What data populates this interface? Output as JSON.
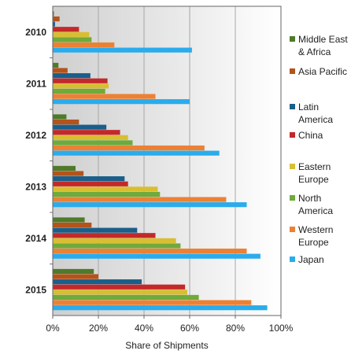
{
  "chart_data": {
    "type": "bar",
    "orientation": "horizontal",
    "xlabel": "Share of Shipments",
    "ylabel": "",
    "xlim": [
      0,
      100
    ],
    "x_ticks": [
      "0%",
      "20%",
      "40%",
      "60%",
      "80%",
      "100%"
    ],
    "x_tick_values": [
      0,
      20,
      40,
      60,
      80,
      100
    ],
    "categories": [
      "2010",
      "2011",
      "2012",
      "2013",
      "2014",
      "2015"
    ],
    "grid": "vertical gridlines",
    "legend_position": "right",
    "series": [
      {
        "name": "Middle East & Africa",
        "color": "#4e7a2a",
        "values": [
          0.5,
          2.5,
          6,
          10,
          14,
          18
        ]
      },
      {
        "name": "Asia Pacific",
        "color": "#b4531a",
        "values": [
          3,
          6.5,
          11.5,
          13.5,
          17,
          20
        ]
      },
      {
        "name": "Latin America",
        "color": "#1a5e8a",
        "values": [
          1,
          16.5,
          23.5,
          31.5,
          37,
          39
        ]
      },
      {
        "name": "China",
        "color": "#c3292a",
        "values": [
          11.5,
          24,
          29.5,
          33,
          45,
          58
        ]
      },
      {
        "name": "Eastern Europe",
        "color": "#d8be30",
        "values": [
          16,
          24.5,
          33,
          46,
          54,
          59
        ]
      },
      {
        "name": "North America",
        "color": "#6eaa3c",
        "values": [
          17,
          23,
          35,
          47,
          56,
          64
        ]
      },
      {
        "name": "Western Europe",
        "color": "#ec8134",
        "values": [
          27,
          45,
          66.5,
          76,
          85,
          87
        ]
      },
      {
        "name": "Japan",
        "color": "#2aacec",
        "values": [
          61,
          60,
          73,
          85,
          91,
          94
        ]
      }
    ]
  },
  "legend": {
    "items": [
      {
        "label_lines": [
          "Middle East",
          "& Africa"
        ],
        "color": "#4e7a2a"
      },
      {
        "label_lines": [
          "Asia Pacific"
        ],
        "color": "#b4531a"
      },
      {
        "label_lines": [
          "Latin",
          "America"
        ],
        "color": "#1a5e8a"
      },
      {
        "label_lines": [
          "China"
        ],
        "color": "#c3292a"
      },
      {
        "label_lines": [
          "Eastern",
          "Europe"
        ],
        "color": "#d8be30"
      },
      {
        "label_lines": [
          "North",
          "America"
        ],
        "color": "#6eaa3c"
      },
      {
        "label_lines": [
          "Western",
          "Europe"
        ],
        "color": "#ec8134"
      },
      {
        "label_lines": [
          "Japan"
        ],
        "color": "#2aacec"
      }
    ]
  }
}
